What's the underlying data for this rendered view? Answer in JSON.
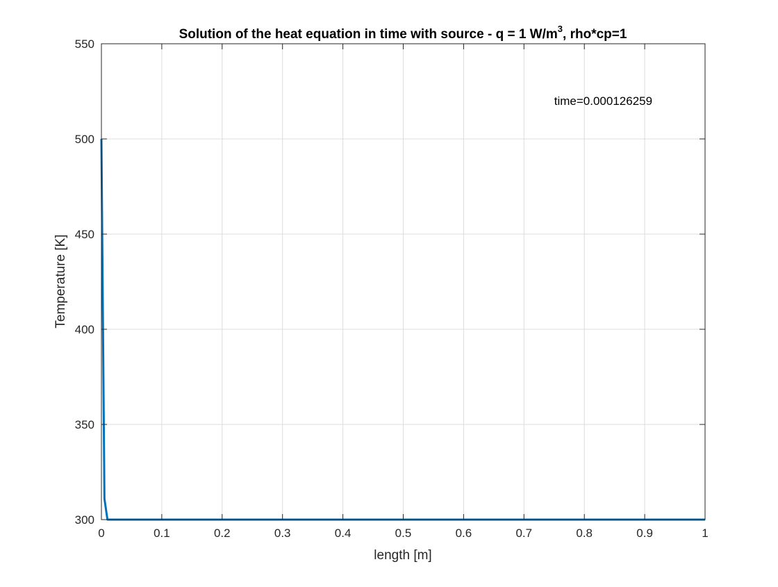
{
  "chart_data": {
    "type": "line",
    "title": {
      "main": "Solution of the heat equation in time with source - q = 1 W/m",
      "superscript": "3",
      "suffix": ", rho*cp=1"
    },
    "xlabel": "length [m]",
    "ylabel": "Temperature [K]",
    "xlim": [
      0,
      1
    ],
    "ylim": [
      300,
      550
    ],
    "xticks": [
      0,
      0.1,
      0.2,
      0.3,
      0.4,
      0.5,
      0.6,
      0.7,
      0.8,
      0.9,
      1
    ],
    "xtick_labels": [
      "0",
      "0.1",
      "0.2",
      "0.3",
      "0.4",
      "0.5",
      "0.6",
      "0.7",
      "0.8",
      "0.9",
      "1"
    ],
    "yticks": [
      300,
      350,
      400,
      450,
      500,
      550
    ],
    "ytick_labels": [
      "300",
      "350",
      "400",
      "450",
      "500",
      "550"
    ],
    "grid": true,
    "box": true,
    "series": [
      {
        "color": "#0072BD",
        "x": [
          0,
          0.005,
          0.01,
          0.02,
          0.05,
          0.1,
          0.2,
          0.3,
          0.4,
          0.5,
          0.6,
          0.7,
          0.8,
          0.9,
          1
        ],
        "y": [
          500,
          311,
          300,
          300,
          300,
          300,
          300,
          300,
          300,
          300,
          300,
          300,
          300,
          300,
          300
        ]
      }
    ],
    "annotations": [
      {
        "text": "time=0.000126259",
        "x": 0.75,
        "y": 520
      }
    ]
  }
}
